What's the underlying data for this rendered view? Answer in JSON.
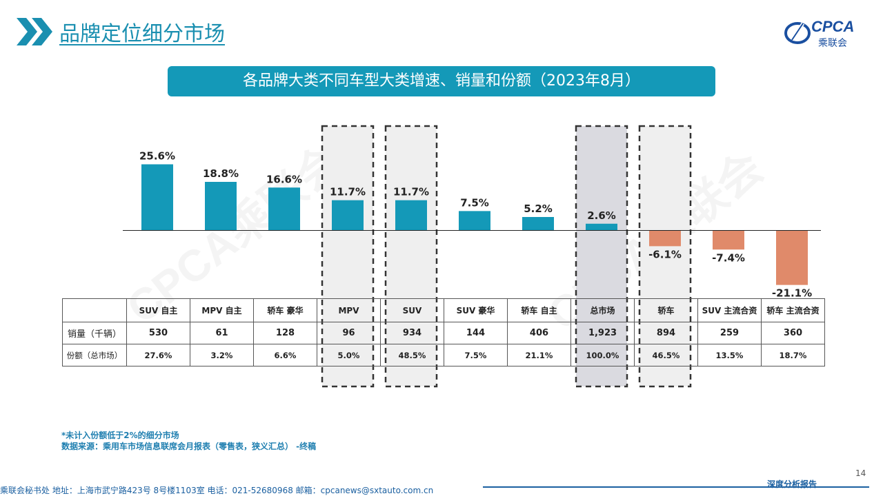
{
  "header": {
    "title": "品牌定位细分市场",
    "logo_text": "CPCA",
    "logo_sub": "乘联会"
  },
  "banner": {
    "title": "各品牌大类不同车型大类增速、销量和份额（2023年8月）"
  },
  "watermark": "CPCA乘联会",
  "colors": {
    "positive": "#1499b8",
    "negative": "#e08a6a",
    "banner": "#1499b8",
    "highlight_light": "#efefef",
    "highlight_dark": "#dadae0"
  },
  "chart_data": {
    "type": "bar",
    "categories": [
      "SUV 自主",
      "MPV 自主",
      "轿车 豪华",
      "MPV",
      "SUV",
      "SUV 豪华",
      "轿车 自主",
      "总市场",
      "轿车",
      "SUV 主流合资",
      "轿车 主流合资"
    ],
    "values": [
      25.6,
      18.8,
      16.6,
      11.7,
      11.7,
      7.5,
      5.2,
      2.6,
      -6.1,
      -7.4,
      -21.1
    ],
    "value_labels": [
      "25.6%",
      "18.8%",
      "16.6%",
      "11.7%",
      "11.7%",
      "7.5%",
      "5.2%",
      "2.6%",
      "-6.1%",
      "-7.4%",
      "-21.1%"
    ],
    "highlighted": [
      "MPV",
      "SUV",
      "总市场",
      "轿车"
    ],
    "ylim": [
      -25,
      30
    ],
    "grid": false
  },
  "table": {
    "rows": [
      {
        "label": "销量（千辆）",
        "values": [
          "530",
          "61",
          "128",
          "96",
          "934",
          "144",
          "406",
          "1,923",
          "894",
          "259",
          "360"
        ]
      },
      {
        "label": "份额（总市场）",
        "values": [
          "27.6%",
          "3.2%",
          "6.6%",
          "5.0%",
          "48.5%",
          "7.5%",
          "21.1%",
          "100.0%",
          "46.5%",
          "13.5%",
          "18.7%"
        ]
      }
    ]
  },
  "footnote": {
    "line1": "*未计入份额低于2%的细分市场",
    "line2": "数据来源：乘用车市场信息联席会月报表（零售表，狭义汇总）  -终稿"
  },
  "footer": {
    "text": "乘联会秘书处  地址：上海市武宁路423号 8号楼1103室  电话：021-52680968   邮箱：cpcanews@sxtauto.com.cn",
    "right": "深度分析报告",
    "page_number": "14"
  }
}
